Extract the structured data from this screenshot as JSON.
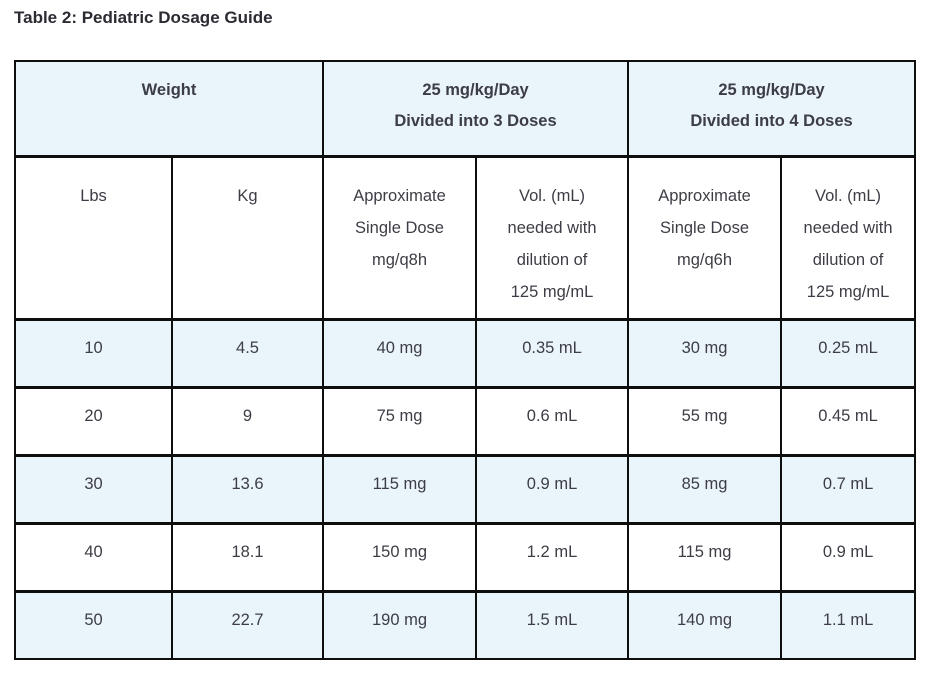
{
  "title": "Table 2: Pediatric Dosage Guide",
  "colors": {
    "background": "#ffffff",
    "row_highlight": "#eaf4fb",
    "border": "#0e0e0e",
    "text": "#3d3d46",
    "title_text": "#2b2b33"
  },
  "chart_data": {
    "type": "table",
    "header_groups": [
      {
        "label": "Weight"
      },
      {
        "label": "25 mg/kg/Day\nDivided into 3 Doses"
      },
      {
        "label": "25 mg/kg/Day\nDivided into 4 Doses"
      }
    ],
    "columns": [
      {
        "label": "Lbs"
      },
      {
        "label": "Kg"
      },
      {
        "label": "Approximate\nSingle Dose\nmg/q8h"
      },
      {
        "label": "Vol. (mL)\nneeded with\ndilution of\n125 mg/mL"
      },
      {
        "label": "Approximate\nSingle Dose\nmg/q6h"
      },
      {
        "label": "Vol. (mL)\nneeded with\ndilution of\n125 mg/mL"
      }
    ],
    "rows": [
      [
        "10",
        "4.5",
        "40 mg",
        "0.35 mL",
        "30 mg",
        "0.25 mL"
      ],
      [
        "20",
        "9",
        "75 mg",
        "0.6 mL",
        "55 mg",
        "0.45 mL"
      ],
      [
        "30",
        "13.6",
        "115 mg",
        "0.9 mL",
        "85 mg",
        "0.7 mL"
      ],
      [
        "40",
        "18.1",
        "150 mg",
        "1.2 mL",
        "115 mg",
        "0.9 mL"
      ],
      [
        "50",
        "22.7",
        "190 mg",
        "1.5 mL",
        "140 mg",
        "1.1 mL"
      ]
    ]
  }
}
